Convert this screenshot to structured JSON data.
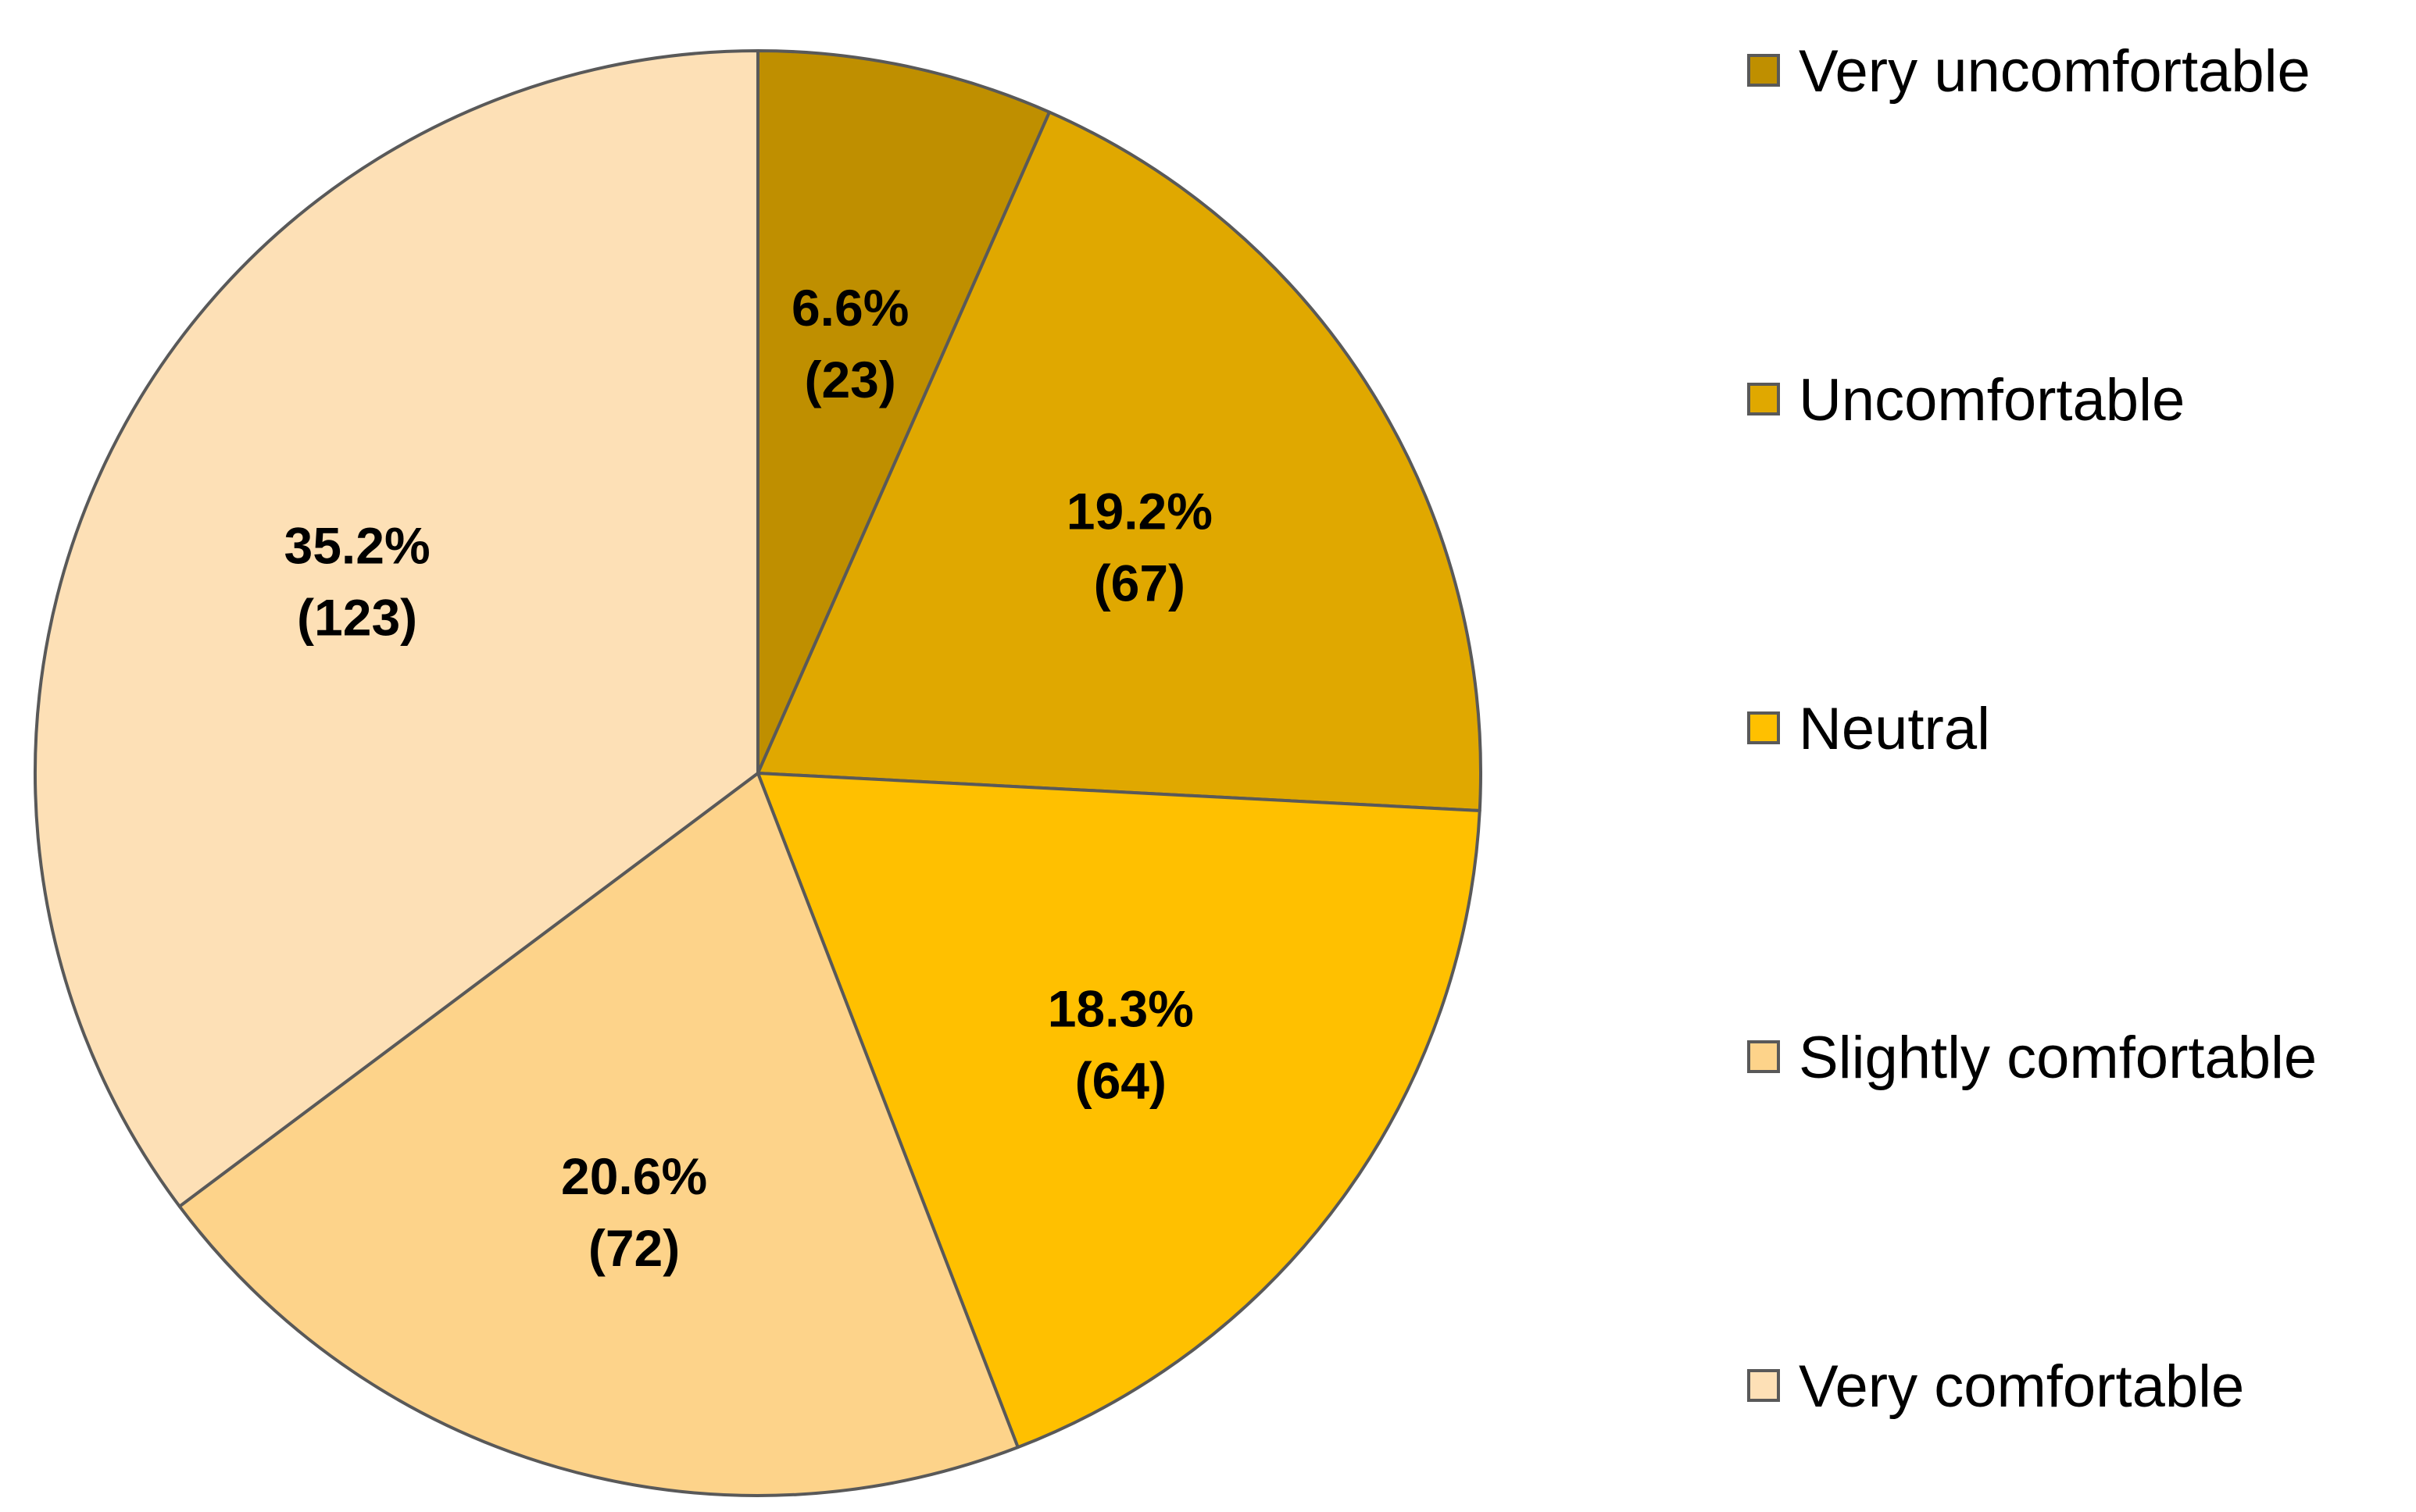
{
  "chart_data": {
    "type": "pie",
    "title": "",
    "start_angle_deg": 0,
    "direction": "clockwise",
    "slices": [
      {
        "label": "Very uncomfortable",
        "percent": 6.6,
        "count": 23,
        "percent_text": "6.6%",
        "count_text": "(23)",
        "color": "#BF8F00"
      },
      {
        "label": "Uncomfortable",
        "percent": 19.2,
        "count": 67,
        "percent_text": "19.2%",
        "count_text": "(67)",
        "color": "#E0A800"
      },
      {
        "label": "Neutral",
        "percent": 18.3,
        "count": 64,
        "percent_text": "18.3%",
        "count_text": "(64)",
        "color": "#FFC000"
      },
      {
        "label": "Slightly comfortable",
        "percent": 20.6,
        "count": 72,
        "percent_text": "20.6%",
        "count_text": "(72)",
        "color": "#FDD38A"
      },
      {
        "label": "Very comfortable",
        "percent": 35.2,
        "count": 123,
        "percent_text": "35.2%",
        "count_text": "(123)",
        "color": "#FDE0B6"
      }
    ],
    "legend": {
      "placement": "right",
      "entries": [
        "Very uncomfortable",
        "Uncomfortable",
        "Neutral",
        "Slightly comfortable",
        "Very comfortable"
      ]
    },
    "stroke_color": "#595959"
  }
}
